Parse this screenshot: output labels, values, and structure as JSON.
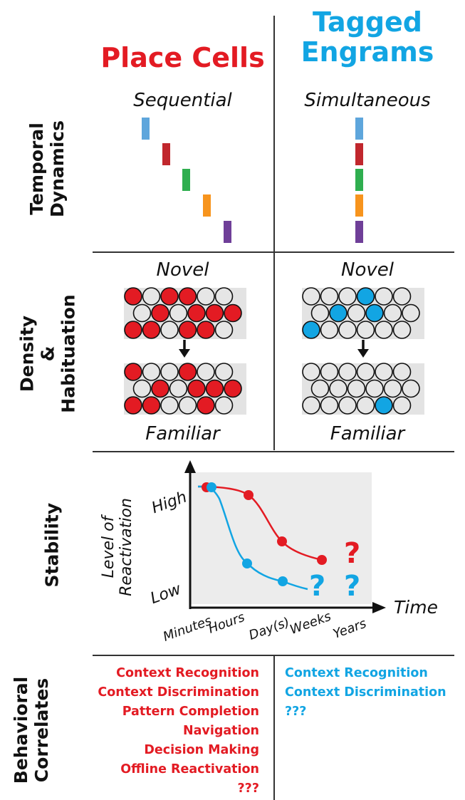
{
  "columns": {
    "left": {
      "line1": "Place Cells",
      "line2": ""
    },
    "right": {
      "line1": "Tagged",
      "line2": "Engrams"
    }
  },
  "rows": {
    "temporal": {
      "line1": "Temporal",
      "line2": "Dynamics"
    },
    "density": {
      "line1": "Density",
      "line2": "&",
      "line3": "Habituation"
    },
    "stability": {
      "line1": "Stability"
    },
    "behavioral": {
      "line1": "Behavioral",
      "line2": "Correlates"
    }
  },
  "temporal": {
    "left_label": "Sequential",
    "right_label": "Simultaneous",
    "bar_colors": [
      "#5ea6dc",
      "#c1272d",
      "#2fae4f",
      "#f7941d",
      "#6f3f98"
    ]
  },
  "density": {
    "top_label_left": "Novel",
    "top_label_right": "Novel",
    "bottom_label_left": "Familiar",
    "bottom_label_right": "Familiar",
    "grid_fill": "#e3e3e3",
    "empty_cell": "#e6e6e6",
    "left_novel": [
      [
        1,
        0,
        1,
        1,
        0,
        0
      ],
      [
        0,
        1,
        0,
        1,
        1,
        1
      ],
      [
        1,
        1,
        0,
        1,
        1,
        0
      ]
    ],
    "left_familiar": [
      [
        1,
        0,
        0,
        1,
        0,
        0
      ],
      [
        0,
        1,
        0,
        1,
        1,
        1
      ],
      [
        1,
        1,
        0,
        0,
        1,
        0
      ]
    ],
    "right_novel": [
      [
        0,
        0,
        0,
        1,
        0,
        0
      ],
      [
        0,
        1,
        0,
        1,
        0,
        0
      ],
      [
        1,
        0,
        0,
        0,
        0,
        0
      ]
    ],
    "right_familiar": [
      [
        0,
        0,
        0,
        0,
        0,
        0
      ],
      [
        0,
        0,
        0,
        0,
        0,
        0
      ],
      [
        0,
        0,
        0,
        0,
        1,
        0
      ]
    ],
    "red": "#e31b23",
    "blue": "#12a5e3"
  },
  "stability": {
    "ylabel_line1": "Level of",
    "ylabel_line2": "Reactivation",
    "y_high": "High",
    "y_low": "Low",
    "xlabel": "Time",
    "x_ticks": [
      "Minutes",
      "Hours",
      "Day(s)",
      "Weeks",
      "Years"
    ],
    "red_question": "?",
    "blue_question_1": "?",
    "blue_question_2": "?"
  },
  "chart_data": {
    "type": "line",
    "xlabel": "Time",
    "ylabel": "Level of Reactivation",
    "categories": [
      "Minutes",
      "Hours",
      "Day(s)",
      "Weeks",
      "Years"
    ],
    "y_ticks": [
      "Low",
      "High"
    ],
    "series": [
      {
        "name": "Place Cells",
        "color": "#e31b23",
        "points": [
          {
            "x": "Minutes",
            "y": "High"
          },
          {
            "x": "Hours",
            "y": 0.9
          },
          {
            "x": "Day(s)",
            "y": 0.5
          },
          {
            "x": "Weeks",
            "y": 0.35
          },
          {
            "x": "Years",
            "y": "?"
          }
        ]
      },
      {
        "name": "Tagged Engrams",
        "color": "#12a5e3",
        "points": [
          {
            "x": "Minutes",
            "y": "High"
          },
          {
            "x": "Hours",
            "y": 0.3
          },
          {
            "x": "Day(s)",
            "y": 0.15
          },
          {
            "x": "Weeks",
            "y": "?"
          },
          {
            "x": "Years",
            "y": "?"
          }
        ]
      }
    ]
  },
  "behavioral": {
    "left": [
      "Context Recognition",
      "Context Discrimination",
      "Pattern Completion",
      "Navigation",
      "Decision Making",
      "Offline Reactivation",
      "???"
    ],
    "right": [
      "Context Recognition",
      "Context Discrimination",
      "???"
    ]
  }
}
